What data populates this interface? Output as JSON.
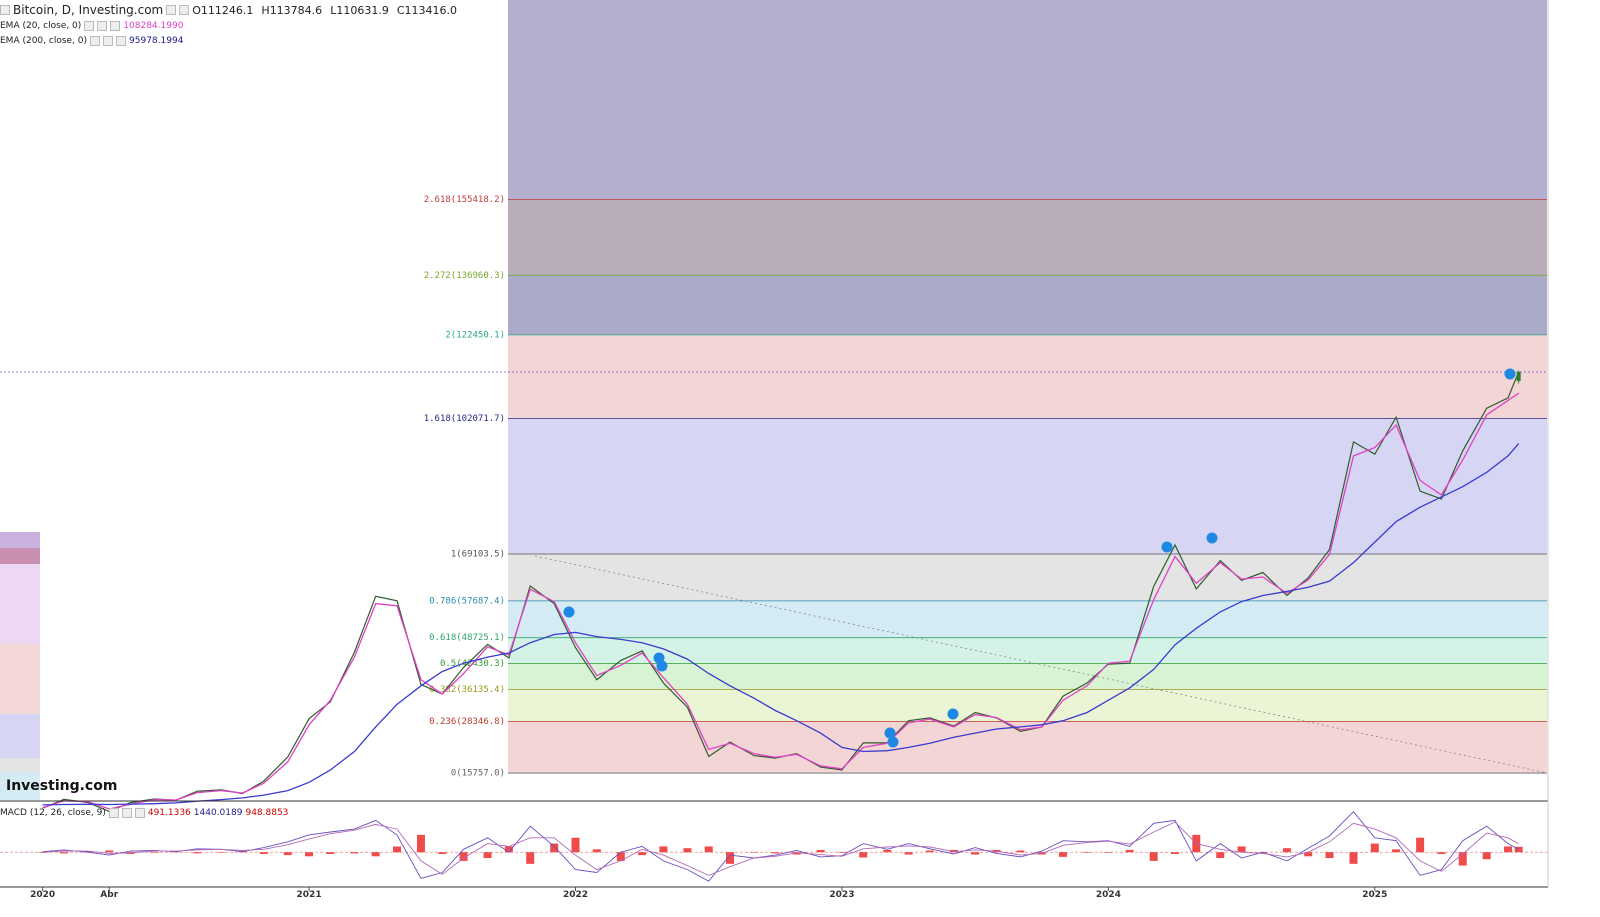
{
  "chart_data": [
    {
      "type": "line",
      "title": "Bitcoin, D, Investing.com",
      "watermark": "Investing.com",
      "ohlc": {
        "labels": [
          "O",
          "H",
          "L",
          "C"
        ],
        "values": [
          111246.1,
          113784.6,
          110631.9,
          113416
        ],
        "value_labels": [
          "111246.1",
          "113784.6",
          "110631.9",
          "113416.0"
        ],
        "up_color": "#2e7d32"
      },
      "x": [
        2020.0,
        2020.08,
        2020.17,
        2020.25,
        2020.33,
        2020.42,
        2020.5,
        2020.58,
        2020.67,
        2020.75,
        2020.83,
        2020.92,
        2021.0,
        2021.08,
        2021.17,
        2021.25,
        2021.33,
        2021.42,
        2021.5,
        2021.58,
        2021.67,
        2021.75,
        2021.83,
        2021.92,
        2022.0,
        2022.08,
        2022.17,
        2022.25,
        2022.33,
        2022.42,
        2022.5,
        2022.58,
        2022.67,
        2022.75,
        2022.83,
        2022.92,
        2023.0,
        2023.08,
        2023.17,
        2023.25,
        2023.33,
        2023.42,
        2023.5,
        2023.58,
        2023.67,
        2023.75,
        2023.83,
        2023.92,
        2024.0,
        2024.08,
        2024.17,
        2024.25,
        2024.33,
        2024.42,
        2024.5,
        2024.58,
        2024.67,
        2024.75,
        2024.83,
        2024.92,
        2025.0,
        2025.08,
        2025.17,
        2025.25,
        2025.33,
        2025.42,
        2025.5,
        2025.54
      ],
      "xlim": [
        2019.84,
        2025.65
      ],
      "xticks": [
        2020,
        {
          "value": 2020.25,
          "label": "Abr"
        },
        2021,
        2022,
        2023,
        2024,
        2025
      ],
      "ylim": [
        9200,
        204000
      ],
      "series": [
        {
          "color": "#2f5d2a",
          "values": [
            7200,
            9350,
            8600,
            6400,
            8600,
            9450,
            9140,
            11350,
            11650,
            10780,
            13800,
            19700,
            29000,
            33100,
            45200,
            58800,
            57700,
            37300,
            35000,
            41500,
            47100,
            43800,
            61300,
            57000,
            46300,
            38500,
            43200,
            45500,
            37700,
            31800,
            19800,
            23300,
            20000,
            19400,
            20500,
            17200,
            16500,
            23100,
            23100,
            28500,
            29200,
            27200,
            30500,
            29200,
            25900,
            27000,
            34500,
            37700,
            42300,
            42500,
            61200,
            71300,
            60600,
            67500,
            62700,
            64600,
            59000,
            63300,
            70200,
            96400,
            93400,
            102400,
            84400,
            82500,
            94200,
            104600,
            107100,
            113416
          ]
        },
        {
          "name": "EMA (20, close, 0)",
          "color": "#e040c8",
          "legend_label": "108284.1990",
          "values": [
            7300,
            9000,
            8800,
            7000,
            8200,
            9300,
            9200,
            11000,
            11500,
            10900,
            13300,
            18500,
            27500,
            33500,
            44000,
            57000,
            56500,
            38500,
            35000,
            40000,
            46500,
            44500,
            60500,
            57500,
            47500,
            39500,
            42000,
            45000,
            39000,
            32500,
            21500,
            23000,
            20500,
            19600,
            20300,
            17500,
            16800,
            22000,
            23000,
            28000,
            28900,
            27000,
            30000,
            29300,
            26300,
            27000,
            33500,
            37000,
            42500,
            43000,
            58000,
            68500,
            62000,
            67000,
            63000,
            63500,
            59500,
            62800,
            69000,
            93000,
            95000,
            100500,
            87000,
            83500,
            92000,
            103000,
            106500,
            108284.199
          ]
        },
        {
          "name": "EMA (200, close, 0)",
          "color": "#3a3ad0",
          "legend_label": "95978.1994",
          "values": [
            8000,
            8100,
            8150,
            8100,
            8200,
            8300,
            8500,
            8900,
            9300,
            9700,
            10400,
            11500,
            13500,
            16500,
            21000,
            27000,
            32500,
            37000,
            40500,
            42500,
            44000,
            45000,
            47500,
            49500,
            50000,
            49000,
            48300,
            47500,
            46000,
            43500,
            40000,
            37000,
            34000,
            31000,
            28500,
            25500,
            22000,
            21000,
            21200,
            22000,
            23000,
            24500,
            25500,
            26500,
            27000,
            27500,
            28500,
            30500,
            33500,
            36500,
            41000,
            47000,
            51000,
            55000,
            57500,
            59000,
            60000,
            61000,
            62500,
            67000,
            72000,
            77000,
            80500,
            83000,
            85500,
            89000,
            93000,
            95978.1994
          ]
        }
      ],
      "fibonacci": [
        {
          "value": 15757,
          "label": "0(15757.0)",
          "color": "#666666",
          "band_color": "#f4d5d5"
        },
        {
          "value": 28346.8,
          "label": "0.236(28346.8)",
          "color": "#c0392b",
          "band_color": "#ecf4d6"
        },
        {
          "value": 36135.4,
          "label": "0.382(36135.4)",
          "color": "#9a9a20",
          "band_color": "#d8f2d4"
        },
        {
          "value": 42430.3,
          "label": "0.5(42430.3)",
          "color": "#2e9e2e",
          "band_color": "#d4f3e6"
        },
        {
          "value": 48725.1,
          "label": "0.618(48725.1)",
          "color": "#2ea86e",
          "band_color": "#d4ebf4"
        },
        {
          "value": 57687.4,
          "label": "0.786(57687.4)",
          "color": "#2a8ab0",
          "band_color": "#e4e4e4"
        },
        {
          "value": 69103.5,
          "label": "1(69103.5)",
          "color": "#555555",
          "band_color": "#d6d6f4"
        },
        {
          "value": 102071.7,
          "label": "1.618(102071.7)",
          "color": "#2a2a8a",
          "band_color": "#f3d5d5"
        },
        {
          "value": 122450.1,
          "label": "2(122450.1)",
          "color": "#2aa88a",
          "band_color": "#aaaac9"
        },
        {
          "value": 136960.3,
          "label": "2.272(136960.3)",
          "color": "#7aa82a",
          "band_color": "#b8adb8"
        },
        {
          "value": 155418.2,
          "label": "2.618(155418.2)",
          "color": "#c03a3a",
          "band_color": "#b5afcf"
        }
      ]
    },
    {
      "type": "macd",
      "name": "MACD (12, 26, close, 9)",
      "ylim": [
        -6000,
        8500
      ],
      "series": [
        {
          "name": "MACD",
          "color": "#6a4fc0",
          "legend_label": "491.1336",
          "values": [
            100,
            400,
            0,
            -500,
            200,
            300,
            100,
            600,
            500,
            100,
            800,
            1800,
            3000,
            3500,
            4000,
            5500,
            3000,
            -4500,
            -3500,
            500,
            2500,
            0,
            4500,
            1000,
            -3000,
            -3500,
            0,
            1000,
            -1500,
            -3000,
            -5000,
            -500,
            -1000,
            -500,
            300,
            -800,
            -600,
            1500,
            500,
            1500,
            600,
            -300,
            800,
            -200,
            -800,
            200,
            2000,
            1800,
            2000,
            1000,
            5000,
            5500,
            -1500,
            1500,
            -1000,
            0,
            -1500,
            700,
            2800,
            7000,
            2500,
            2000,
            -4000,
            -3000,
            2000,
            4500,
            1500,
            491.1336
          ]
        },
        {
          "name": "Signal",
          "color": "#b06ab8",
          "legend_label": "1440.0189",
          "values": [
            0,
            200,
            200,
            -200,
            -100,
            200,
            200,
            400,
            500,
            300,
            500,
            1300,
            2300,
            3200,
            3800,
            4800,
            4000,
            -1500,
            -3800,
            -1000,
            1500,
            1000,
            2500,
            2500,
            -500,
            -3000,
            -1500,
            500,
            -500,
            -2300,
            -4000,
            -2500,
            -1000,
            -700,
            -100,
            -400,
            -700,
            600,
            900,
            1100,
            900,
            100,
            400,
            200,
            -500,
            -200,
            1200,
            1700,
            1900,
            1400,
            3500,
            5200,
            1500,
            500,
            0,
            -200,
            -800,
            0,
            1800,
            5000,
            4000,
            2500,
            -1500,
            -3300,
            -300,
            3300,
            2500,
            1440.0189
          ]
        },
        {
          "name": "Histogram",
          "color": "#ee4b4b",
          "legend_label": "948.8853",
          "values": [
            -100,
            -200,
            200,
            300,
            -300,
            -100,
            100,
            -200,
            0,
            200,
            -300,
            -500,
            -700,
            -300,
            -200,
            -700,
            1000,
            3000,
            -300,
            -1500,
            -1000,
            1000,
            -2000,
            1500,
            2500,
            500,
            -1500,
            -500,
            1000,
            700,
            1000,
            -2000,
            0,
            -200,
            -400,
            400,
            -100,
            -900,
            400,
            -400,
            300,
            400,
            -400,
            400,
            300,
            -400,
            -800,
            -100,
            -100,
            400,
            -1500,
            -300,
            3000,
            -1000,
            1000,
            -200,
            700,
            -700,
            -1000,
            -2000,
            1500,
            500,
            2500,
            -300,
            -2300,
            -1200,
            1000,
            948.8853
          ]
        }
      ]
    }
  ]
}
